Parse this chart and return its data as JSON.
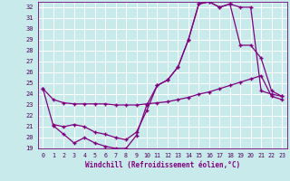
{
  "xlabel": "Windchill (Refroidissement éolien,°C)",
  "xlim": [
    -0.5,
    23.5
  ],
  "ylim": [
    19,
    32.5
  ],
  "xticks": [
    0,
    1,
    2,
    3,
    4,
    5,
    6,
    7,
    8,
    9,
    10,
    11,
    12,
    13,
    14,
    15,
    16,
    17,
    18,
    19,
    20,
    21,
    22,
    23
  ],
  "yticks": [
    19,
    20,
    21,
    22,
    23,
    24,
    25,
    26,
    27,
    28,
    29,
    30,
    31,
    32
  ],
  "bg_color": "#c8eaea",
  "line_color": "#800080",
  "grid_color": "#ffffff",
  "curve1_x": [
    0,
    1,
    2,
    3,
    4,
    5,
    6,
    7,
    8,
    9,
    10,
    11,
    12,
    13,
    14,
    15,
    16,
    17,
    18,
    19,
    20,
    21,
    22,
    23
  ],
  "curve1_y": [
    24.5,
    23.5,
    23.2,
    23.1,
    23.1,
    23.1,
    23.1,
    23.0,
    23.0,
    23.0,
    23.1,
    23.2,
    23.3,
    23.5,
    23.7,
    24.0,
    24.2,
    24.5,
    24.8,
    25.1,
    25.4,
    25.7,
    23.8,
    23.5
  ],
  "curve2_x": [
    0,
    1,
    2,
    3,
    4,
    5,
    6,
    7,
    8,
    9,
    10,
    11,
    12,
    13,
    14,
    15,
    16,
    17,
    18,
    19,
    20,
    21,
    22,
    23
  ],
  "curve2_y": [
    24.5,
    21.1,
    20.3,
    19.5,
    20.0,
    19.5,
    19.2,
    19.0,
    19.0,
    20.2,
    23.0,
    24.8,
    25.3,
    26.5,
    29.0,
    32.3,
    32.5,
    32.0,
    32.3,
    32.0,
    32.0,
    24.3,
    24.0,
    23.8
  ],
  "curve3_x": [
    1,
    2,
    3,
    4,
    5,
    6,
    7,
    8,
    9,
    10,
    11,
    12,
    13,
    14,
    15,
    16,
    17,
    18,
    19,
    20,
    21,
    22,
    23
  ],
  "curve3_y": [
    21.2,
    21.0,
    21.2,
    21.0,
    20.5,
    20.3,
    20.0,
    19.8,
    20.5,
    22.5,
    24.8,
    25.3,
    26.5,
    29.0,
    32.3,
    32.5,
    32.0,
    32.3,
    28.5,
    28.5,
    27.3,
    24.3,
    23.8
  ]
}
